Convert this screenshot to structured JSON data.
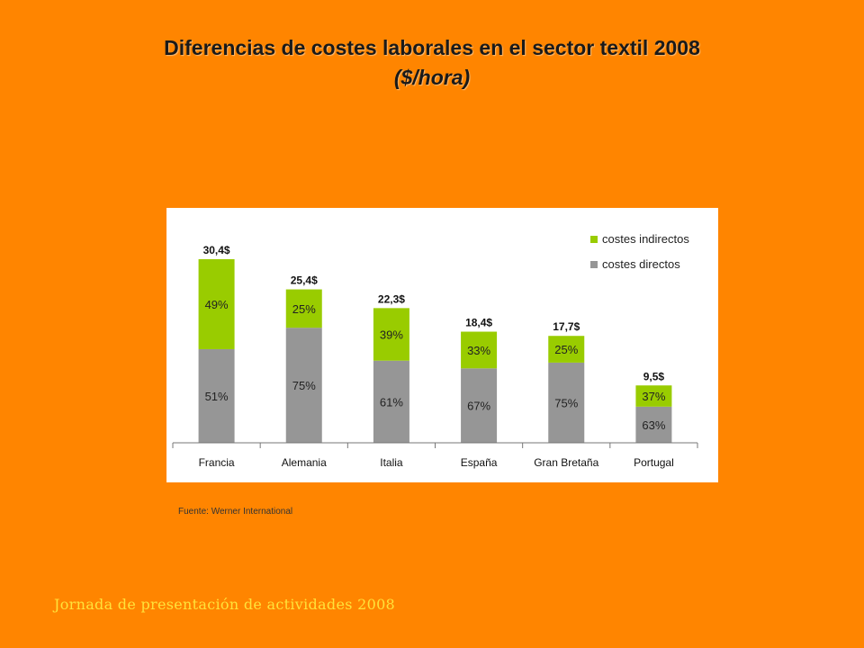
{
  "slide": {
    "title": "Diferencias de costes laborales en el sector textil 2008",
    "subtitle": "($/hora)",
    "source": "Fuente: Werner International",
    "footer": "Jornada de presentación de actividades 2008",
    "background_color": "#FF8500",
    "footer_color": "#FFE23A"
  },
  "chart_data": {
    "type": "bar",
    "stacked": true,
    "categories": [
      "Francia",
      "Alemania",
      "Italia",
      "España",
      "Gran Bretaña",
      "Portugal"
    ],
    "totals": [
      30.4,
      25.4,
      22.3,
      18.4,
      17.7,
      9.5
    ],
    "total_labels": [
      "30,4$",
      "25,4$",
      "22,3$",
      "18,4$",
      "17,7$",
      "9,5$"
    ],
    "series": [
      {
        "name": "costes directos",
        "color": "#969696",
        "percent": [
          51,
          75,
          61,
          67,
          75,
          63
        ],
        "labels": [
          "51%",
          "75%",
          "61%",
          "67%",
          "75%",
          "63%"
        ]
      },
      {
        "name": "costes indirectos",
        "color": "#99CC00",
        "percent": [
          49,
          25,
          39,
          33,
          25,
          37
        ],
        "labels": [
          "49%",
          "25%",
          "39%",
          "33%",
          "25%",
          "37%"
        ]
      }
    ],
    "legend": [
      "costes indirectos",
      "costes directos"
    ],
    "legend_position": "top-right",
    "grid": false
  }
}
